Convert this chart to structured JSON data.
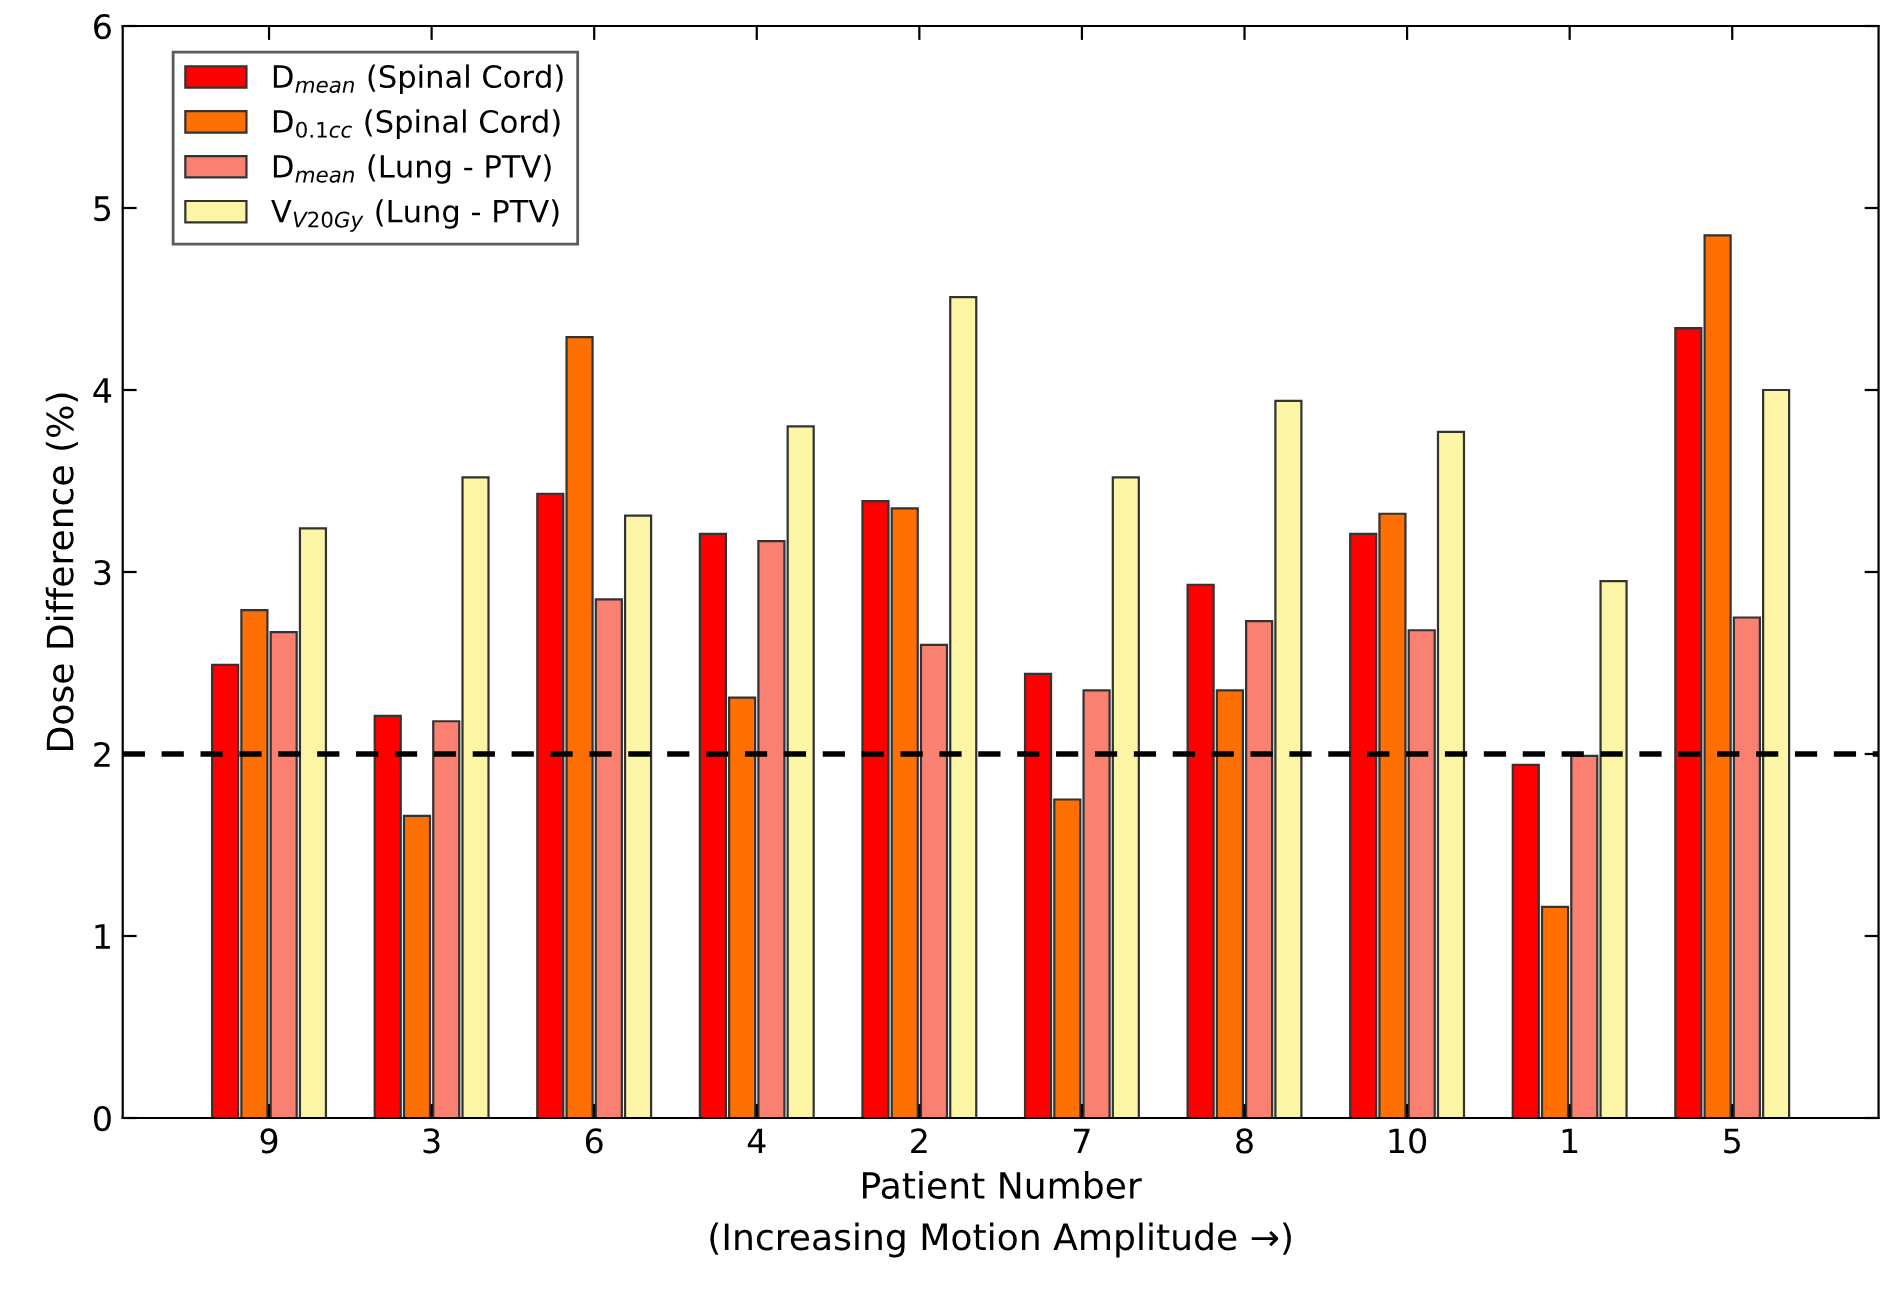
{
  "chart_data": {
    "type": "bar",
    "xlabel": "Patient Number\n(Increasing Motion Amplitude →)",
    "ylabel": "Dose Difference (%)",
    "categories": [
      "9",
      "3",
      "6",
      "4",
      "2",
      "7",
      "8",
      "10",
      "1",
      "5"
    ],
    "series": [
      {
        "name": "D$_{mean}$ (Spinal Cord)",
        "color": "#ff0000",
        "values": [
          2.49,
          2.21,
          3.43,
          3.21,
          3.39,
          2.44,
          2.93,
          3.21,
          1.94,
          4.34
        ]
      },
      {
        "name": "D$_{0.1cc}$ (Spinal Cord)",
        "color": "#ff7000",
        "values": [
          2.79,
          1.66,
          4.29,
          2.31,
          3.35,
          1.75,
          2.35,
          3.32,
          1.16,
          4.85
        ]
      },
      {
        "name": "D$_{mean}$ (Lung - PTV)",
        "color": "#fa8072",
        "values": [
          2.67,
          2.18,
          2.85,
          3.17,
          2.6,
          2.35,
          2.73,
          2.68,
          1.99,
          2.75
        ]
      },
      {
        "name": "V$_{V20Gy}$ (Lung - PTV)",
        "color": "#fbf5a5",
        "values": [
          3.24,
          3.52,
          3.31,
          3.8,
          4.51,
          3.52,
          3.94,
          3.77,
          2.95,
          4.0
        ]
      }
    ],
    "ylim": [
      0,
      6
    ],
    "yticks": [
      0,
      1,
      2,
      3,
      4,
      5,
      6
    ],
    "ref_lines": [
      {
        "axis": "y",
        "value": 2,
        "color": "#000000",
        "line_style": "dashed"
      }
    ],
    "grid": false,
    "legend": "top left"
  }
}
